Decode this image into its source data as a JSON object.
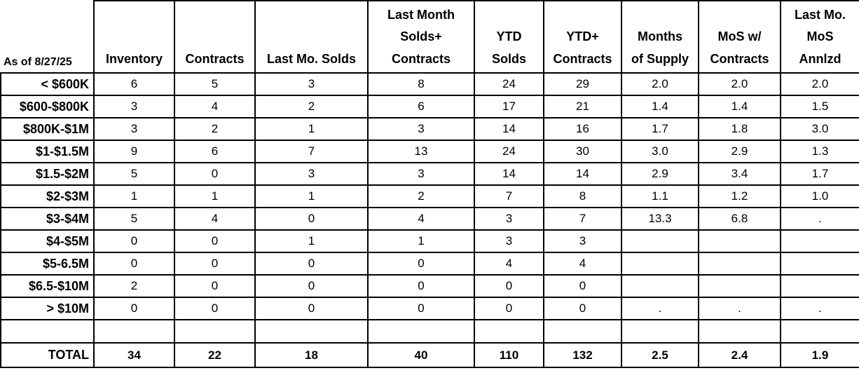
{
  "table": {
    "header_lines": [
      [
        "As of 8/27/25"
      ],
      [
        "Inventory"
      ],
      [
        "Contracts"
      ],
      [
        "Last Mo. Solds"
      ],
      [
        "Last Month",
        "Solds+",
        "Contracts"
      ],
      [
        "YTD",
        "Solds"
      ],
      [
        "YTD+",
        "Contracts"
      ],
      [
        "Months",
        "of Supply"
      ],
      [
        "MoS w/",
        "Contracts"
      ],
      [
        "Last Mo.",
        "MoS",
        "Annlzd"
      ]
    ],
    "colors": {
      "border": "#000000",
      "text": "#000000",
      "background": "#ffffff"
    }
  },
  "chart_data": {
    "type": "table",
    "as_of": "As of 8/27/25",
    "columns": [
      "Inventory",
      "Contracts",
      "Last Mo. Solds",
      "Last Month Solds+ Contracts",
      "YTD Solds",
      "YTD+ Contracts",
      "Months of Supply",
      "MoS w/ Contracts",
      "Last Mo. MoS Annlzd"
    ],
    "row_labels": [
      "< $600K",
      "$600-$800K",
      "$800K-$1M",
      "$1-$1.5M",
      "$1.5-$2M",
      "$2-$3M",
      "$3-$4M",
      "$4-$5M",
      "$5-6.5M",
      "$6.5-$10M",
      "> $10M"
    ],
    "rows": [
      [
        "6",
        "5",
        "3",
        "8",
        "24",
        "29",
        "2.0",
        "2.0",
        "2.0"
      ],
      [
        "3",
        "4",
        "2",
        "6",
        "17",
        "21",
        "1.4",
        "1.4",
        "1.5"
      ],
      [
        "3",
        "2",
        "1",
        "3",
        "14",
        "16",
        "1.7",
        "1.8",
        "3.0"
      ],
      [
        "9",
        "6",
        "7",
        "13",
        "24",
        "30",
        "3.0",
        "2.9",
        "1.3"
      ],
      [
        "5",
        "0",
        "3",
        "3",
        "14",
        "14",
        "2.9",
        "3.4",
        "1.7"
      ],
      [
        "1",
        "1",
        "1",
        "2",
        "7",
        "8",
        "1.1",
        "1.2",
        "1.0"
      ],
      [
        "5",
        "4",
        "0",
        "4",
        "3",
        "7",
        "13.3",
        "6.8",
        "."
      ],
      [
        "0",
        "0",
        "1",
        "1",
        "3",
        "3",
        "",
        "",
        ""
      ],
      [
        "0",
        "0",
        "0",
        "0",
        "4",
        "4",
        "",
        "",
        ""
      ],
      [
        "2",
        "0",
        "0",
        "0",
        "0",
        "0",
        "",
        "",
        ""
      ],
      [
        "0",
        "0",
        "0",
        "0",
        "0",
        "0",
        ".",
        ".",
        "."
      ]
    ],
    "total_label": "TOTAL",
    "total": [
      "34",
      "22",
      "18",
      "40",
      "110",
      "132",
      "2.5",
      "2.4",
      "1.9"
    ]
  }
}
